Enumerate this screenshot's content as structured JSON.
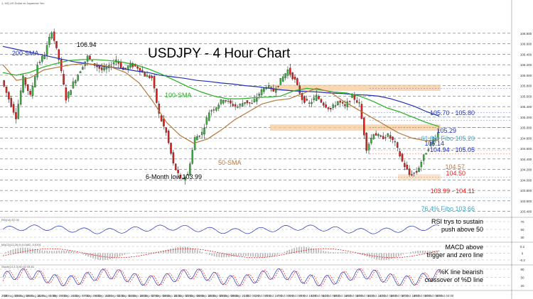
{
  "header": {
    "symbol_caption": "1, H4) US Dollar vs Japanese Yen"
  },
  "chart_data": {
    "type": "line",
    "title": "USDJPY - 4 Hour Chart",
    "ylim": [
      103.3,
      107.3
    ],
    "x_ticks": [
      "2020",
      "28 Aug 00:00",
      "25 Aug 08:00",
      "26 Aug 16:00",
      "31 Aug 00:00",
      "1 Sep 08:00",
      "2 Sep 16:00",
      "4 Sep 00:00",
      "7 Sep 08:00",
      "8 Sep 16:00",
      "10 Sep 00:00",
      "11 Sep 08:00",
      "14 Sep 16:00",
      "16 Sep 00:00",
      "17 Sep 08:00",
      "18 Sep 16:00",
      "21 Sep 00:00",
      "22 Sep 08:00",
      "23 Sep 16:00",
      "25 Sep 00:00",
      "28 Sep 08:00",
      "29 Sep 16:00",
      "1 Oct 00:00",
      "2 Oct 08:00",
      "5 Oct 16:00",
      "7 Oct 00:00",
      "8 Oct 08:00",
      "9 Oct 16:00",
      "13 Oct 00:00",
      "14 Oct 08:00",
      "15 Oct 16:00",
      "19 Oct 00:00",
      "20 Oct 08:00",
      "21 Oct 16:00",
      "23 Oct 00:00",
      "26 Oct 08:00",
      "27 Oct 16:00",
      "29 Oct 00:00",
      "30 Oct 08:00",
      "30 Oct 04:00"
    ],
    "y_ticks": [
      106.8,
      106.6,
      106.4,
      106.2,
      106.0,
      105.8,
      105.6,
      105.4,
      105.2,
      105.0,
      104.8,
      104.6,
      104.4,
      104.2,
      104.0,
      103.8,
      103.6,
      103.4
    ],
    "price_path": [
      105.9,
      105.55,
      105.2,
      105.95,
      105.6,
      106.2,
      106.4,
      106.85,
      106.3,
      105.55,
      105.85,
      106.1,
      106.35,
      106.2,
      106.1,
      106.15,
      106.3,
      106.1,
      106.2,
      106.15,
      106.0,
      105.95,
      105.25,
      104.9,
      104.3,
      104.0,
      104.1,
      104.8,
      104.9,
      105.3,
      105.4,
      105.55,
      105.45,
      105.4,
      105.5,
      105.45,
      105.65,
      105.8,
      105.7,
      105.9,
      106.1,
      105.9,
      105.55,
      105.45,
      105.6,
      105.45,
      105.35,
      105.5,
      105.4,
      105.6,
      105.45,
      104.6,
      104.9,
      104.8,
      104.85,
      104.7,
      104.35,
      104.1,
      104.15,
      104.45,
      104.7,
      104.9
    ],
    "series": [
      {
        "name": "200-SMA",
        "color": "#1f2fb8",
        "values": [
          106.55,
          106.5,
          106.45,
          106.4,
          106.35,
          106.3,
          106.25,
          106.22,
          106.18,
          106.15,
          106.12,
          106.08,
          106.05,
          106.0,
          105.97,
          105.94,
          105.9,
          105.88,
          105.85,
          105.83,
          105.8,
          105.78,
          105.75,
          105.72,
          105.7,
          105.69,
          105.68,
          105.66,
          105.65,
          105.63,
          105.62,
          105.6,
          105.55,
          105.48,
          105.4,
          105.3,
          105.22
        ]
      },
      {
        "name": "100-SMA",
        "color": "#22b022",
        "values": [
          106.05,
          106.0,
          106.05,
          106.15,
          106.22,
          106.28,
          106.3,
          106.3,
          106.28,
          106.25,
          106.2,
          106.12,
          106.02,
          105.9,
          105.78,
          105.68,
          105.6,
          105.55,
          105.55,
          105.57,
          105.58,
          105.6,
          105.7,
          105.75,
          105.72,
          105.68,
          105.66,
          105.6,
          105.5,
          105.38,
          105.3,
          105.2,
          105.1,
          105.02
        ]
      },
      {
        "name": "50-SMA",
        "color": "#b2773b",
        "values": [
          106.2,
          105.9,
          105.95,
          106.1,
          106.15,
          106.2,
          106.22,
          106.2,
          106.15,
          106.05,
          105.85,
          105.5,
          105.1,
          104.85,
          104.7,
          104.78,
          104.95,
          105.15,
          105.3,
          105.45,
          105.52,
          105.55,
          105.65,
          105.75,
          105.68,
          105.5,
          105.35,
          105.2,
          105.05,
          104.9,
          104.8,
          104.75,
          104.76
        ]
      }
    ],
    "levels": [
      {
        "label": "105.70 - 105.80",
        "value": 105.75,
        "color": "#1f2fb8"
      },
      {
        "label": "105.29",
        "value": 105.29,
        "color": "#1f2fb8"
      },
      {
        "label": "61.8% Fibo 105.20",
        "value": 105.2,
        "color": "#3aa3c8"
      },
      {
        "label": "105.14",
        "value": 105.14,
        "color": "#1f2fb8"
      },
      {
        "label": "104.94 - 105.05",
        "value": 105.0,
        "color": "#1f2fb8"
      },
      {
        "label": "104.57",
        "value": 104.57,
        "color": "#b2773b"
      },
      {
        "label": "104.50",
        "value": 104.5,
        "color": "#e02020"
      },
      {
        "label": "103.99 - 104.11",
        "value": 104.05,
        "color": "#e02020"
      },
      {
        "label": "76.4% Fibo 103.66",
        "value": 103.66,
        "color": "#3aa3c8"
      }
    ],
    "annotations": [
      {
        "label": "106.94",
        "value": 106.94
      },
      {
        "label": "200-SMA"
      },
      {
        "label": "100-SMA"
      },
      {
        "label": "50-SMA"
      },
      {
        "label": "6-Month low 103.99",
        "value": 103.99
      }
    ],
    "indicators": {
      "rsi": {
        "label": "RSI(14) 57.00",
        "note": "RSI trys to sustain push above 50",
        "ticks": [
          70,
          50,
          30
        ]
      },
      "macd": {
        "label": "MACD(12,26,9) 0.0482 -0.0191",
        "note": "MACD above trigger and zero line",
        "ticks": [
          0.2,
          0.0,
          -0.2
        ]
      },
      "stoch": {
        "label": "Stoch(14,3,3) 60.62 65.81",
        "note": "%K line bearish crossover of %D line",
        "ticks": [
          80,
          50,
          20
        ]
      }
    }
  }
}
